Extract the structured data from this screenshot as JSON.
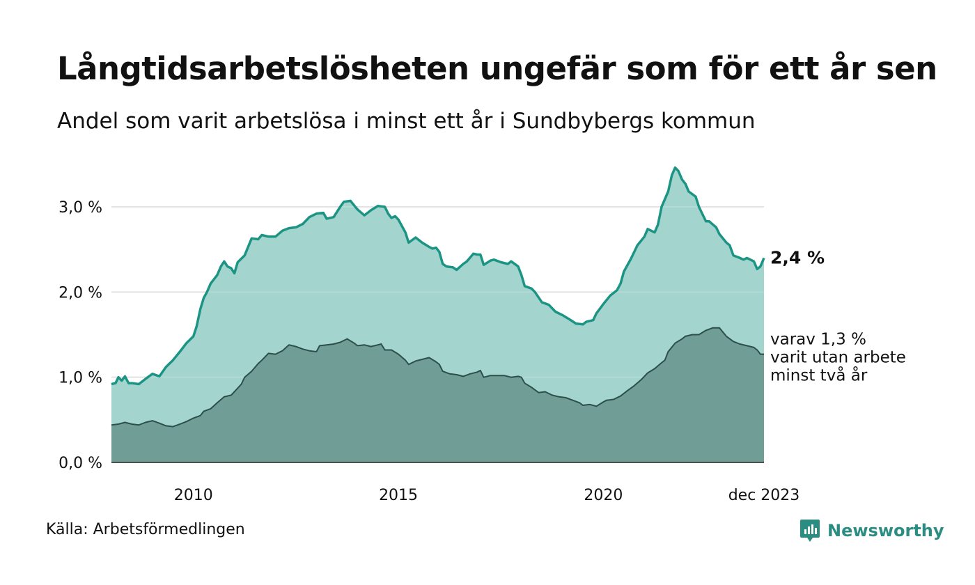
{
  "title": "Långtidsarbetslösheten ungefär som för ett år sen",
  "subtitle": "Andel som varit arbetslösa i minst ett år i Sundbybergs kommun",
  "source": "Källa: Arbetsförmedlingen",
  "brand": "Newsworthy",
  "colors": {
    "total_fill": "#a3d4ce",
    "total_line": "#1c9484",
    "long_fill": "#709e96",
    "long_line": "#2d4f4b",
    "grid": "#dddddd",
    "brand": "#2b8c82"
  },
  "chart_data": {
    "type": "area",
    "title": "Långtidsarbetslösheten ungefär som för ett år sen",
    "xlabel": "",
    "ylabel": "",
    "x_range": [
      2008.0,
      2023.917
    ],
    "ylim": [
      0,
      3.5
    ],
    "yticks": [
      {
        "v": 0,
        "label": "0,0 %"
      },
      {
        "v": 1,
        "label": "1,0 %"
      },
      {
        "v": 2,
        "label": "2,0 %"
      },
      {
        "v": 3,
        "label": "3,0 %"
      }
    ],
    "xticks": [
      {
        "v": 2010,
        "label": "2010"
      },
      {
        "v": 2015,
        "label": "2015"
      },
      {
        "v": 2020,
        "label": "2020"
      },
      {
        "v": 2023.917,
        "label": "dec 2023"
      }
    ],
    "grid": true,
    "series": [
      {
        "name": "total",
        "description": "Arbetslösa minst ett år (%)",
        "points": [
          [
            2008.0,
            0.92
          ],
          [
            2008.1,
            0.93
          ],
          [
            2008.17,
            1.0
          ],
          [
            2008.25,
            0.96
          ],
          [
            2008.33,
            1.01
          ],
          [
            2008.42,
            0.93
          ],
          [
            2008.5,
            0.93
          ],
          [
            2008.67,
            0.92
          ],
          [
            2008.83,
            0.98
          ],
          [
            2009.0,
            1.04
          ],
          [
            2009.17,
            1.01
          ],
          [
            2009.33,
            1.12
          ],
          [
            2009.5,
            1.2
          ],
          [
            2009.67,
            1.3
          ],
          [
            2009.83,
            1.4
          ],
          [
            2010.0,
            1.48
          ],
          [
            2010.08,
            1.6
          ],
          [
            2010.17,
            1.8
          ],
          [
            2010.25,
            1.93
          ],
          [
            2010.33,
            2.0
          ],
          [
            2010.42,
            2.1
          ],
          [
            2010.58,
            2.2
          ],
          [
            2010.67,
            2.3
          ],
          [
            2010.75,
            2.36
          ],
          [
            2010.83,
            2.3
          ],
          [
            2010.92,
            2.28
          ],
          [
            2011.0,
            2.22
          ],
          [
            2011.08,
            2.35
          ],
          [
            2011.25,
            2.43
          ],
          [
            2011.42,
            2.63
          ],
          [
            2011.58,
            2.62
          ],
          [
            2011.67,
            2.67
          ],
          [
            2011.83,
            2.65
          ],
          [
            2012.0,
            2.65
          ],
          [
            2012.17,
            2.72
          ],
          [
            2012.33,
            2.75
          ],
          [
            2012.5,
            2.76
          ],
          [
            2012.67,
            2.8
          ],
          [
            2012.83,
            2.88
          ],
          [
            2013.0,
            2.92
          ],
          [
            2013.17,
            2.93
          ],
          [
            2013.25,
            2.86
          ],
          [
            2013.42,
            2.88
          ],
          [
            2013.58,
            3.0
          ],
          [
            2013.67,
            3.06
          ],
          [
            2013.83,
            3.07
          ],
          [
            2014.0,
            2.97
          ],
          [
            2014.17,
            2.9
          ],
          [
            2014.33,
            2.96
          ],
          [
            2014.5,
            3.01
          ],
          [
            2014.67,
            3.0
          ],
          [
            2014.75,
            2.92
          ],
          [
            2014.83,
            2.87
          ],
          [
            2014.92,
            2.89
          ],
          [
            2015.0,
            2.85
          ],
          [
            2015.17,
            2.7
          ],
          [
            2015.25,
            2.58
          ],
          [
            2015.42,
            2.64
          ],
          [
            2015.58,
            2.58
          ],
          [
            2015.75,
            2.53
          ],
          [
            2015.83,
            2.51
          ],
          [
            2015.92,
            2.52
          ],
          [
            2016.0,
            2.47
          ],
          [
            2016.08,
            2.33
          ],
          [
            2016.17,
            2.3
          ],
          [
            2016.33,
            2.29
          ],
          [
            2016.42,
            2.26
          ],
          [
            2016.58,
            2.33
          ],
          [
            2016.67,
            2.36
          ],
          [
            2016.83,
            2.45
          ],
          [
            2016.92,
            2.44
          ],
          [
            2017.0,
            2.44
          ],
          [
            2017.08,
            2.32
          ],
          [
            2017.25,
            2.37
          ],
          [
            2017.33,
            2.38
          ],
          [
            2017.5,
            2.35
          ],
          [
            2017.67,
            2.33
          ],
          [
            2017.75,
            2.36
          ],
          [
            2017.92,
            2.3
          ],
          [
            2018.0,
            2.2
          ],
          [
            2018.08,
            2.07
          ],
          [
            2018.25,
            2.04
          ],
          [
            2018.33,
            2.0
          ],
          [
            2018.5,
            1.88
          ],
          [
            2018.67,
            1.85
          ],
          [
            2018.83,
            1.77
          ],
          [
            2019.0,
            1.73
          ],
          [
            2019.17,
            1.68
          ],
          [
            2019.33,
            1.63
          ],
          [
            2019.5,
            1.62
          ],
          [
            2019.58,
            1.65
          ],
          [
            2019.75,
            1.67
          ],
          [
            2019.83,
            1.75
          ],
          [
            2020.0,
            1.86
          ],
          [
            2020.17,
            1.96
          ],
          [
            2020.33,
            2.02
          ],
          [
            2020.42,
            2.1
          ],
          [
            2020.5,
            2.24
          ],
          [
            2020.67,
            2.39
          ],
          [
            2020.83,
            2.55
          ],
          [
            2021.0,
            2.65
          ],
          [
            2021.08,
            2.74
          ],
          [
            2021.25,
            2.7
          ],
          [
            2021.33,
            2.79
          ],
          [
            2021.42,
            3.0
          ],
          [
            2021.58,
            3.18
          ],
          [
            2021.67,
            3.37
          ],
          [
            2021.75,
            3.46
          ],
          [
            2021.83,
            3.42
          ],
          [
            2021.92,
            3.32
          ],
          [
            2022.0,
            3.27
          ],
          [
            2022.08,
            3.18
          ],
          [
            2022.25,
            3.12
          ],
          [
            2022.33,
            3.0
          ],
          [
            2022.5,
            2.83
          ],
          [
            2022.58,
            2.83
          ],
          [
            2022.75,
            2.76
          ],
          [
            2022.83,
            2.68
          ],
          [
            2023.0,
            2.58
          ],
          [
            2023.08,
            2.55
          ],
          [
            2023.17,
            2.43
          ],
          [
            2023.33,
            2.4
          ],
          [
            2023.42,
            2.38
          ],
          [
            2023.5,
            2.4
          ],
          [
            2023.67,
            2.36
          ],
          [
            2023.75,
            2.27
          ],
          [
            2023.83,
            2.3
          ],
          [
            2023.917,
            2.4
          ]
        ]
      },
      {
        "name": "long",
        "description": "varav utan arbete minst två år (%)",
        "points": [
          [
            2008.0,
            0.44
          ],
          [
            2008.17,
            0.45
          ],
          [
            2008.33,
            0.47
          ],
          [
            2008.5,
            0.45
          ],
          [
            2008.67,
            0.44
          ],
          [
            2008.83,
            0.47
          ],
          [
            2009.0,
            0.49
          ],
          [
            2009.17,
            0.46
          ],
          [
            2009.33,
            0.43
          ],
          [
            2009.5,
            0.42
          ],
          [
            2009.67,
            0.45
          ],
          [
            2009.83,
            0.48
          ],
          [
            2010.0,
            0.52
          ],
          [
            2010.17,
            0.55
          ],
          [
            2010.25,
            0.6
          ],
          [
            2010.42,
            0.63
          ],
          [
            2010.58,
            0.7
          ],
          [
            2010.75,
            0.77
          ],
          [
            2010.92,
            0.79
          ],
          [
            2011.0,
            0.83
          ],
          [
            2011.17,
            0.92
          ],
          [
            2011.25,
            1.0
          ],
          [
            2011.42,
            1.07
          ],
          [
            2011.58,
            1.16
          ],
          [
            2011.67,
            1.2
          ],
          [
            2011.83,
            1.28
          ],
          [
            2012.0,
            1.27
          ],
          [
            2012.17,
            1.31
          ],
          [
            2012.33,
            1.38
          ],
          [
            2012.5,
            1.36
          ],
          [
            2012.67,
            1.33
          ],
          [
            2012.83,
            1.31
          ],
          [
            2013.0,
            1.3
          ],
          [
            2013.08,
            1.37
          ],
          [
            2013.25,
            1.38
          ],
          [
            2013.42,
            1.39
          ],
          [
            2013.58,
            1.41
          ],
          [
            2013.75,
            1.45
          ],
          [
            2013.92,
            1.4
          ],
          [
            2014.0,
            1.37
          ],
          [
            2014.17,
            1.38
          ],
          [
            2014.33,
            1.36
          ],
          [
            2014.5,
            1.38
          ],
          [
            2014.58,
            1.39
          ],
          [
            2014.67,
            1.32
          ],
          [
            2014.83,
            1.32
          ],
          [
            2015.0,
            1.27
          ],
          [
            2015.17,
            1.2
          ],
          [
            2015.25,
            1.15
          ],
          [
            2015.42,
            1.19
          ],
          [
            2015.58,
            1.21
          ],
          [
            2015.75,
            1.23
          ],
          [
            2015.92,
            1.18
          ],
          [
            2016.0,
            1.15
          ],
          [
            2016.08,
            1.07
          ],
          [
            2016.25,
            1.04
          ],
          [
            2016.42,
            1.03
          ],
          [
            2016.58,
            1.01
          ],
          [
            2016.75,
            1.04
          ],
          [
            2016.92,
            1.06
          ],
          [
            2017.0,
            1.08
          ],
          [
            2017.08,
            1.0
          ],
          [
            2017.25,
            1.02
          ],
          [
            2017.42,
            1.02
          ],
          [
            2017.58,
            1.02
          ],
          [
            2017.75,
            1.0
          ],
          [
            2017.92,
            1.01
          ],
          [
            2018.0,
            1.0
          ],
          [
            2018.08,
            0.93
          ],
          [
            2018.25,
            0.88
          ],
          [
            2018.42,
            0.82
          ],
          [
            2018.58,
            0.83
          ],
          [
            2018.75,
            0.79
          ],
          [
            2018.92,
            0.77
          ],
          [
            2019.08,
            0.76
          ],
          [
            2019.25,
            0.73
          ],
          [
            2019.42,
            0.7
          ],
          [
            2019.5,
            0.67
          ],
          [
            2019.67,
            0.68
          ],
          [
            2019.83,
            0.66
          ],
          [
            2020.0,
            0.71
          ],
          [
            2020.08,
            0.73
          ],
          [
            2020.25,
            0.74
          ],
          [
            2020.42,
            0.78
          ],
          [
            2020.58,
            0.84
          ],
          [
            2020.75,
            0.9
          ],
          [
            2020.92,
            0.97
          ],
          [
            2021.08,
            1.05
          ],
          [
            2021.25,
            1.1
          ],
          [
            2021.42,
            1.17
          ],
          [
            2021.5,
            1.2
          ],
          [
            2021.58,
            1.3
          ],
          [
            2021.75,
            1.4
          ],
          [
            2021.92,
            1.45
          ],
          [
            2022.0,
            1.48
          ],
          [
            2022.17,
            1.5
          ],
          [
            2022.33,
            1.5
          ],
          [
            2022.5,
            1.55
          ],
          [
            2022.67,
            1.58
          ],
          [
            2022.83,
            1.58
          ],
          [
            2023.0,
            1.48
          ],
          [
            2023.17,
            1.42
          ],
          [
            2023.33,
            1.39
          ],
          [
            2023.5,
            1.37
          ],
          [
            2023.67,
            1.35
          ],
          [
            2023.75,
            1.32
          ],
          [
            2023.83,
            1.27
          ],
          [
            2023.917,
            1.27
          ]
        ]
      }
    ],
    "annotations": {
      "total_label": "2,4 %",
      "long_label_lines": [
        "varav 1,3 %",
        "varit utan arbete",
        "minst två år"
      ]
    }
  }
}
